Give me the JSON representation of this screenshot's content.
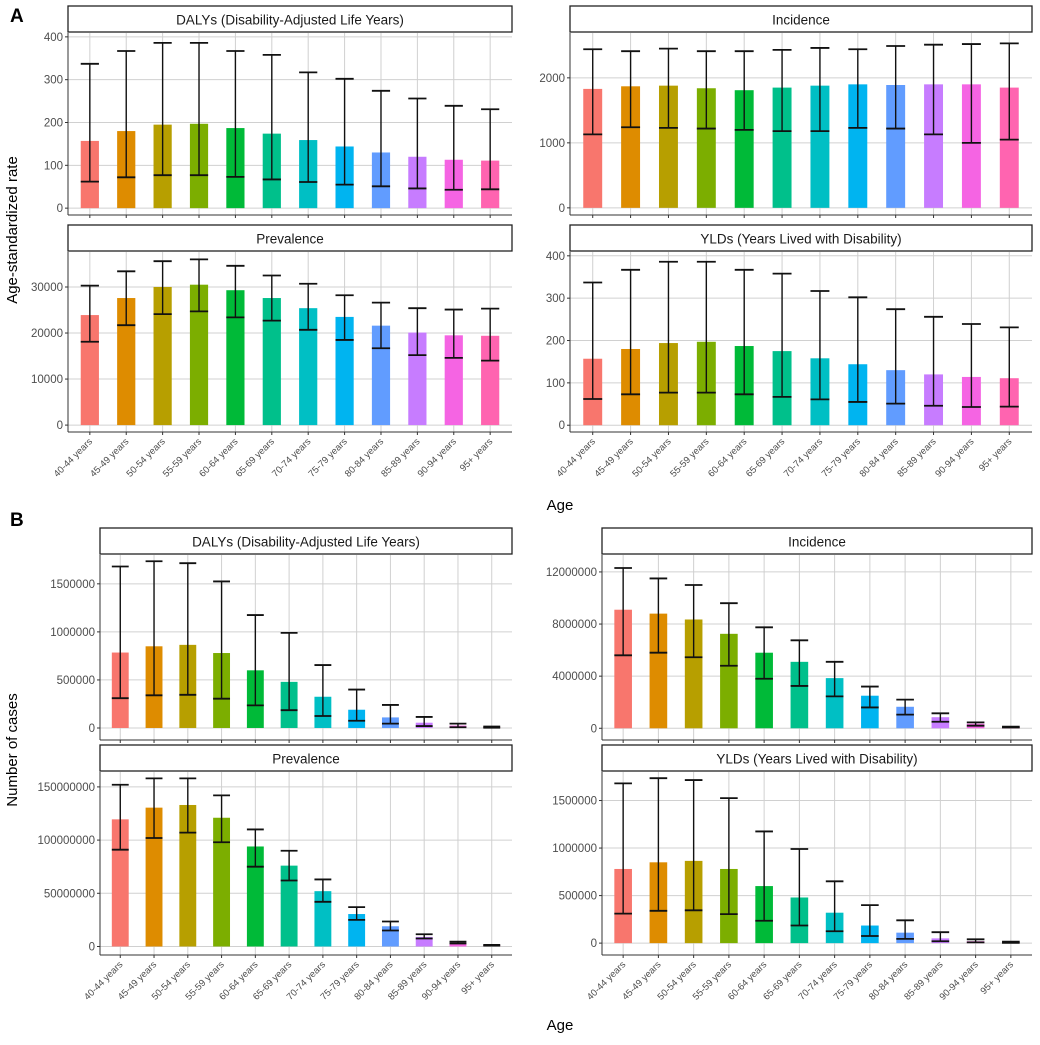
{
  "colors": [
    "#F8766D",
    "#DE8C00",
    "#B79F00",
    "#7CAE00",
    "#00BA38",
    "#00C08B",
    "#00BFC4",
    "#00B4F0",
    "#619CFF",
    "#C77CFF",
    "#F564E3",
    "#FF64B0"
  ],
  "chart_data": [
    {
      "type": "bar",
      "panel_label": "A",
      "ylabel": "Age-standardized rate",
      "xlabel": "Age",
      "categories": [
        "40-44 years",
        "45-49 years",
        "50-54 years",
        "55-59 years",
        "60-64 years",
        "65-69 years",
        "70-74 years",
        "75-79 years",
        "80-84 years",
        "85-89 years",
        "90-94 years",
        "95+ years"
      ],
      "grid": true,
      "facets": [
        {
          "title": "DALYs (Disability-Adjusted Life Years)",
          "ylim": [
            -16,
            409
          ],
          "yticks": [
            "0",
            "100",
            "200",
            "300",
            "400"
          ],
          "values": [
            157,
            180,
            195,
            197,
            187,
            174,
            159,
            144,
            130,
            120,
            113,
            111
          ],
          "lower": [
            62,
            72,
            77,
            77,
            73,
            67,
            61,
            55,
            51,
            46,
            43,
            44
          ],
          "upper": [
            337,
            367,
            386,
            386,
            367,
            358,
            317,
            302,
            274,
            256,
            239,
            231
          ]
        },
        {
          "title": "Incidence",
          "ylim": [
            -110,
            2690
          ],
          "yticks": [
            "0",
            "1000",
            "2000"
          ],
          "values": [
            1830,
            1870,
            1880,
            1840,
            1810,
            1850,
            1880,
            1900,
            1890,
            1900,
            1900,
            1850
          ],
          "lower": [
            1130,
            1240,
            1230,
            1220,
            1200,
            1180,
            1180,
            1230,
            1220,
            1130,
            1000,
            1050
          ],
          "upper": [
            2440,
            2410,
            2450,
            2410,
            2410,
            2430,
            2460,
            2440,
            2490,
            2510,
            2520,
            2530
          ]
        },
        {
          "title": "Prevalence",
          "ylim": [
            -1500,
            37600
          ],
          "yticks": [
            "0",
            "10000",
            "20000",
            "30000"
          ],
          "values": [
            23900,
            27600,
            30000,
            30500,
            29300,
            27600,
            25400,
            23500,
            21600,
            20100,
            19500,
            19400
          ],
          "lower": [
            18100,
            21700,
            24100,
            24700,
            23400,
            22700,
            20700,
            18500,
            16700,
            15200,
            14600,
            14000
          ],
          "upper": [
            30300,
            33400,
            35600,
            36000,
            34600,
            32500,
            30700,
            28200,
            26600,
            25400,
            25100,
            25300
          ]
        },
        {
          "title": "YLDs (Years Lived with Disability)",
          "ylim": [
            -16,
            409
          ],
          "yticks": [
            "0",
            "100",
            "200",
            "300",
            "400"
          ],
          "values": [
            157,
            180,
            194,
            197,
            187,
            175,
            158,
            144,
            130,
            120,
            114,
            111
          ],
          "lower": [
            62,
            73,
            77,
            77,
            73,
            67,
            61,
            55,
            51,
            46,
            43,
            44
          ],
          "upper": [
            337,
            367,
            386,
            386,
            367,
            358,
            317,
            302,
            274,
            256,
            239,
            231
          ]
        }
      ]
    },
    {
      "type": "bar",
      "panel_label": "B",
      "ylabel": "Number of cases",
      "xlabel": "Age",
      "categories": [
        "40-44 years",
        "45-49 years",
        "50-54 years",
        "55-59 years",
        "60-64 years",
        "65-69 years",
        "70-74 years",
        "75-79 years",
        "80-84 years",
        "85-89 years",
        "90-94 years",
        "95+ years"
      ],
      "grid": true,
      "facets": [
        {
          "title": "DALYs (Disability-Adjusted Life Years)",
          "ylim": [
            -125000,
            1800000
          ],
          "yticks": [
            "0",
            "500000",
            "1000000",
            "1500000"
          ],
          "values": [
            785000,
            850000,
            865000,
            780000,
            600000,
            480000,
            325000,
            190000,
            110000,
            55000,
            25000,
            8000
          ],
          "lower": [
            310000,
            340000,
            345000,
            305000,
            235000,
            185000,
            125000,
            75000,
            45000,
            20000,
            8000,
            3000
          ],
          "upper": [
            1680000,
            1735000,
            1715000,
            1525000,
            1175000,
            990000,
            655000,
            400000,
            240000,
            115000,
            45000,
            15000
          ]
        },
        {
          "title": "Incidence",
          "ylim": [
            -900000,
            13300000
          ],
          "yticks": [
            "0",
            "4000000",
            "8000000",
            "12000000"
          ],
          "values": [
            9100000,
            8800000,
            8350000,
            7250000,
            5800000,
            5100000,
            3850000,
            2500000,
            1650000,
            850000,
            350000,
            100000
          ],
          "lower": [
            5600000,
            5800000,
            5450000,
            4800000,
            3800000,
            3250000,
            2450000,
            1600000,
            1050000,
            500000,
            200000,
            60000
          ],
          "upper": [
            12300000,
            11500000,
            11000000,
            9600000,
            7750000,
            6750000,
            5100000,
            3200000,
            2200000,
            1150000,
            450000,
            120000
          ]
        },
        {
          "title": "Prevalence",
          "ylim": [
            -8000000,
            164000000
          ],
          "yticks": [
            "0",
            "50000000",
            "100000000",
            "150000000"
          ],
          "values": [
            119500000,
            130500000,
            133000000,
            121000000,
            94000000,
            76000000,
            52000000,
            30500000,
            19000000,
            9000000,
            3500000,
            1000000
          ],
          "lower": [
            91000000,
            102000000,
            107000000,
            98000000,
            75000000,
            62000000,
            42000000,
            25000000,
            15000000,
            7500000,
            2800000,
            800000
          ],
          "upper": [
            152000000,
            158000000,
            158000000,
            142000000,
            110000000,
            90000000,
            63000000,
            37000000,
            23500000,
            11500000,
            4500000,
            1500000
          ]
        },
        {
          "title": "YLDs (Years Lived with Disability)",
          "ylim": [
            -125000,
            1800000
          ],
          "yticks": [
            "0",
            "500000",
            "1000000",
            "1500000"
          ],
          "values": [
            780000,
            850000,
            865000,
            780000,
            600000,
            480000,
            320000,
            185000,
            110000,
            50000,
            20000,
            7000
          ],
          "lower": [
            310000,
            340000,
            345000,
            305000,
            235000,
            185000,
            125000,
            75000,
            45000,
            20000,
            8000,
            3000
          ],
          "upper": [
            1680000,
            1735000,
            1715000,
            1525000,
            1175000,
            990000,
            650000,
            400000,
            240000,
            115000,
            40000,
            15000
          ]
        }
      ]
    }
  ]
}
